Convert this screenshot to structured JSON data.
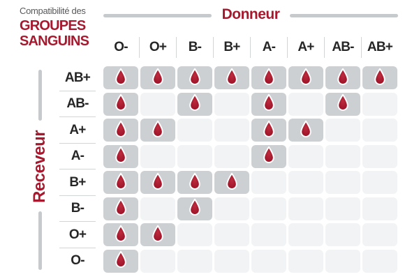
{
  "title": {
    "eyebrow": "Compatibilité des",
    "line1": "GROUPES",
    "line2": "SANGUINS"
  },
  "axis": {
    "donor": "Donneur",
    "receiver": "Receveur"
  },
  "chart_data": {
    "type": "heatmap",
    "title": "Compatibilité des GROUPES SANGUINS",
    "columns_axis_label": "Donneur",
    "rows_axis_label": "Receveur",
    "columns": [
      "O-",
      "O+",
      "B-",
      "B+",
      "A-",
      "A+",
      "AB-",
      "AB+"
    ],
    "rows": [
      "AB+",
      "AB-",
      "A+",
      "A-",
      "B+",
      "B-",
      "O+",
      "O-"
    ],
    "matrix": [
      [
        1,
        1,
        1,
        1,
        1,
        1,
        1,
        1
      ],
      [
        1,
        0,
        1,
        0,
        1,
        0,
        1,
        0
      ],
      [
        1,
        1,
        0,
        0,
        1,
        1,
        0,
        0
      ],
      [
        1,
        0,
        0,
        0,
        1,
        0,
        0,
        0
      ],
      [
        1,
        1,
        1,
        1,
        0,
        0,
        0,
        0
      ],
      [
        1,
        0,
        1,
        0,
        0,
        0,
        0,
        0
      ],
      [
        1,
        1,
        0,
        0,
        0,
        0,
        0,
        0
      ],
      [
        1,
        0,
        0,
        0,
        0,
        0,
        0,
        0
      ]
    ],
    "marker_icon": "blood-drop-icon",
    "marker_meaning": "compatible"
  },
  "colors": {
    "accent_red": "#A6192E",
    "title_gray": "#58595B",
    "label_dark": "#262626",
    "cell_filled": "#CDD0D2",
    "cell_empty": "#F2F3F4",
    "divider": "#D2D5D6",
    "bar_gray": "#C6CACC"
  }
}
